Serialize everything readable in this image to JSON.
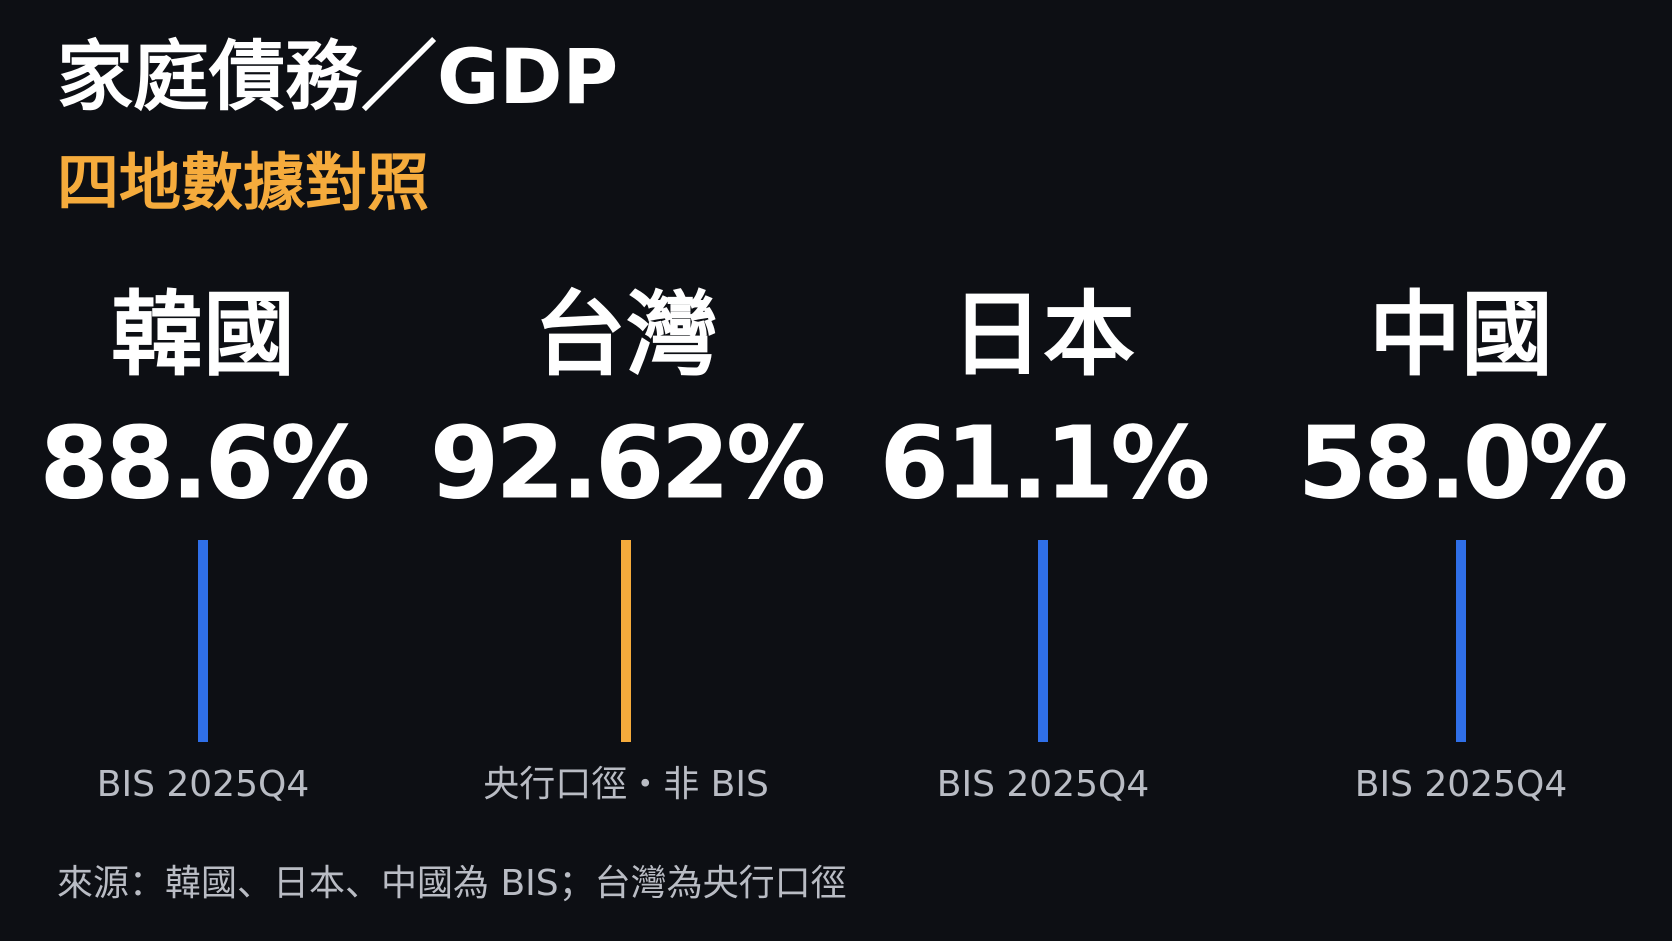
{
  "header": {
    "title": "家庭債務／GDP",
    "subtitle": "四地數據對照"
  },
  "items": [
    {
      "name": "韓國",
      "value": "88.6%",
      "note": "BIS 2025Q4",
      "color": "#2f6fe8"
    },
    {
      "name": "台灣",
      "value": "92.62%",
      "note": "央行口徑・非 BIS",
      "color": "#f5ab3c"
    },
    {
      "name": "日本",
      "value": "61.1%",
      "note": "BIS 2025Q4",
      "color": "#2f6fe8"
    },
    {
      "name": "中國",
      "value": "58.0%",
      "note": "BIS 2025Q4",
      "color": "#2f6fe8"
    }
  ],
  "footer": {
    "source": "來源：韓國、日本、中國為 BIS；台灣為央行口徑"
  }
}
